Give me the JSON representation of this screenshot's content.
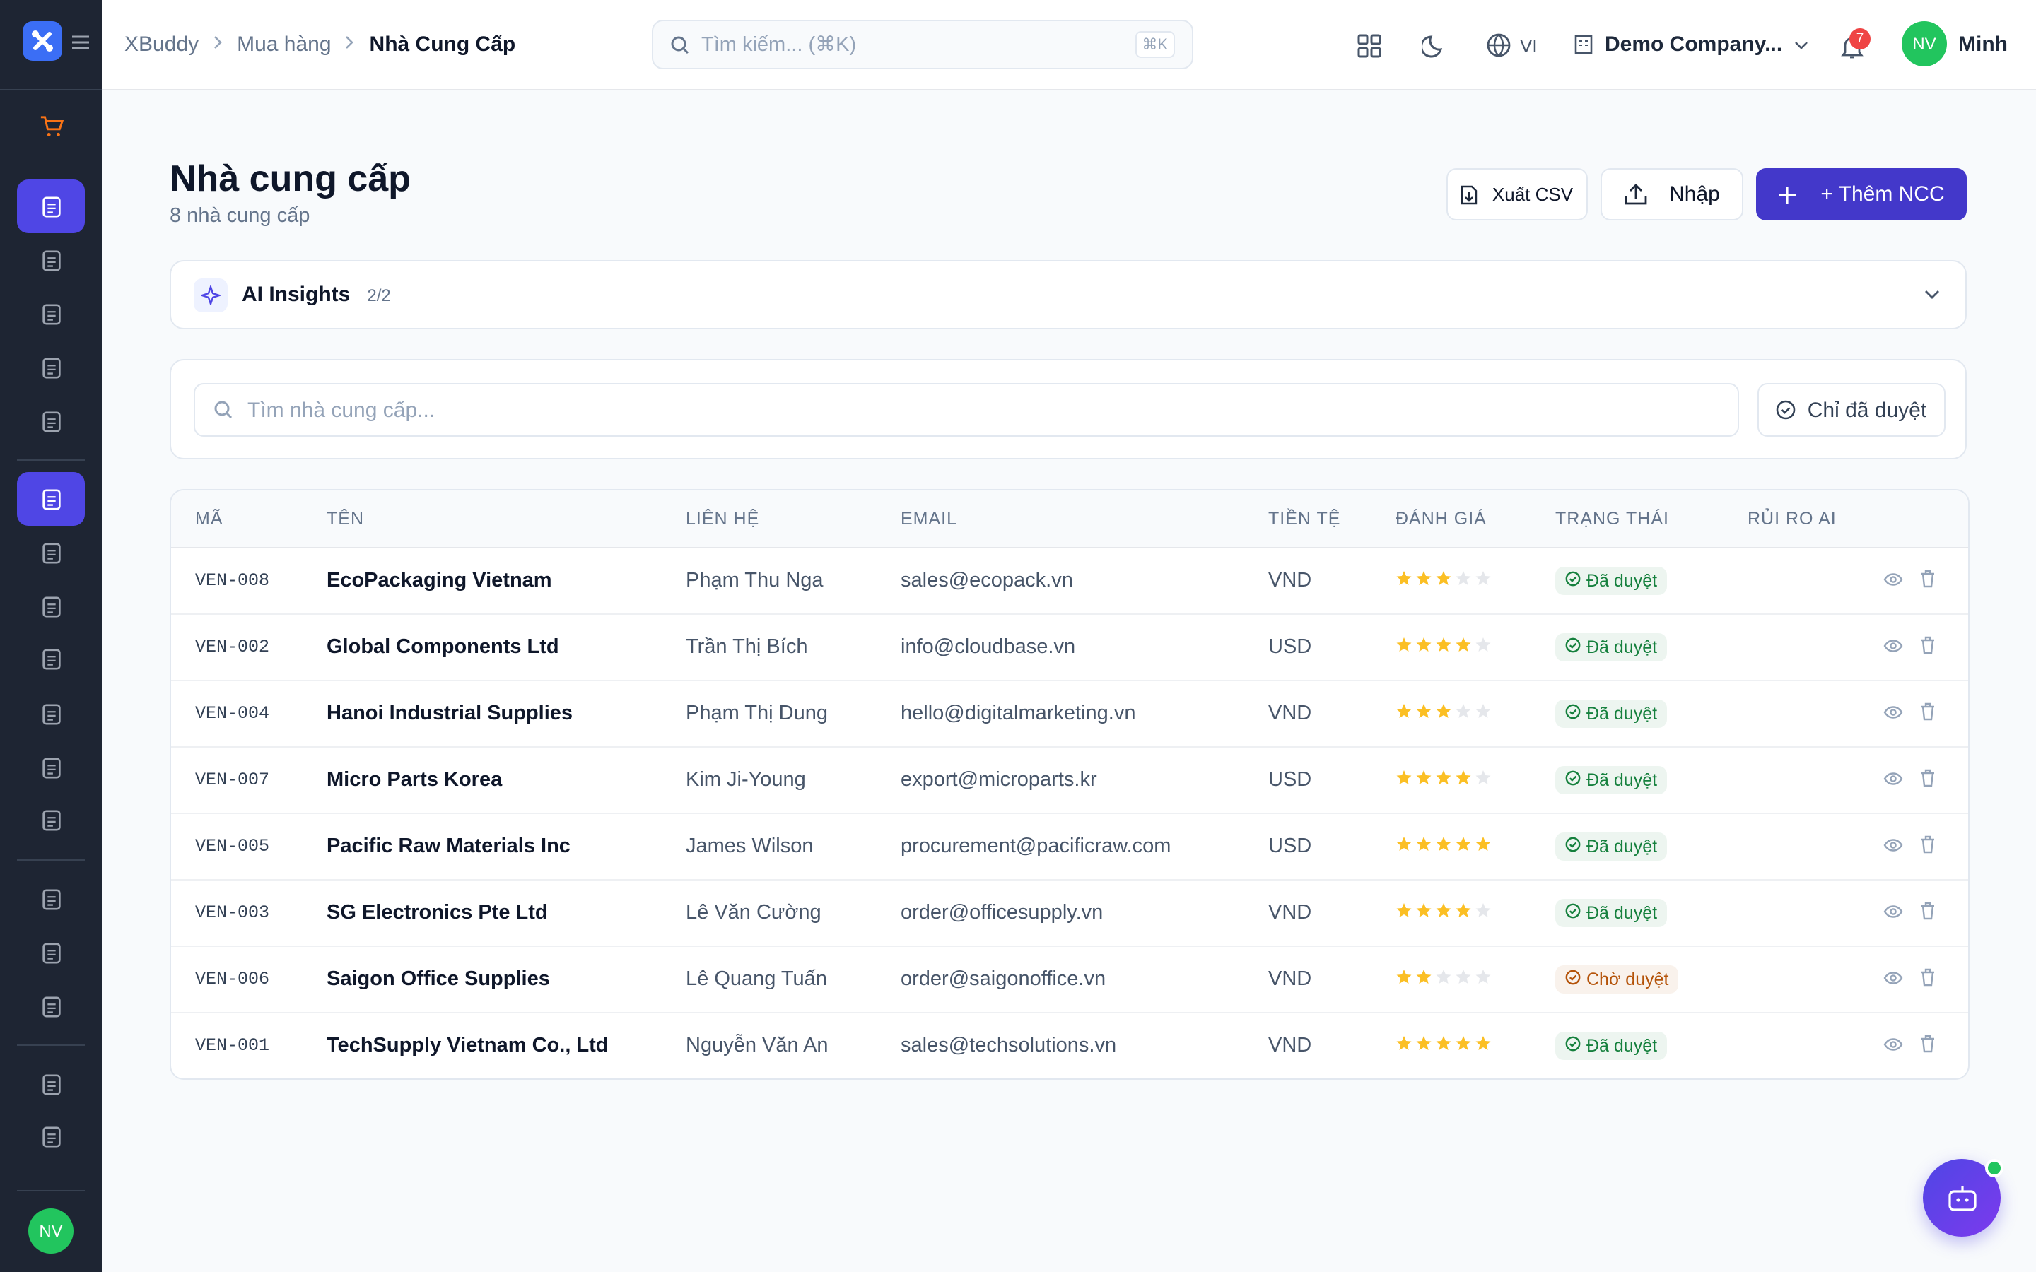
{
  "topbar": {
    "breadcrumb": [
      "XBuddy",
      "Mua hàng",
      "Nhà Cung Cấp"
    ],
    "search_placeholder": "Tìm kiếm... (⌘K)",
    "search_shortcut": "⌘K",
    "language": "VI",
    "company": "Demo Company...",
    "notifications": "7",
    "user_initials": "NV",
    "user_name": "Minh"
  },
  "sidebar": {
    "user_initials": "NV"
  },
  "page": {
    "title": "Nhà cung cấp",
    "subtitle": "8 nhà cung cấp",
    "export_button": "Xuất CSV",
    "import_button": "Nhập",
    "add_button": "+ Thêm NCC"
  },
  "ai_insights": {
    "title": "AI Insights",
    "count": "2/2"
  },
  "filter": {
    "search_placeholder": "Tìm nhà cung cấp...",
    "approved_only": "Chỉ đã duyệt"
  },
  "table": {
    "columns": [
      "MÃ",
      "TÊN",
      "LIÊN HỆ",
      "EMAIL",
      "TIỀN TỆ",
      "ĐÁNH GIÁ",
      "TRẠNG THÁI",
      "RỦI RO AI"
    ],
    "rows": [
      {
        "code": "VEN-008",
        "name": "EcoPackaging Vietnam",
        "contact": "Phạm Thu Nga",
        "email": "sales@ecopack.vn",
        "currency": "VND",
        "rating": 3,
        "status": "Đã duyệt",
        "status_color": "#15803d"
      },
      {
        "code": "VEN-002",
        "name": "Global Components Ltd",
        "contact": "Trần Thị Bích",
        "email": "info@cloudbase.vn",
        "currency": "USD",
        "rating": 4,
        "status": "Đã duyệt",
        "status_color": "#15803d"
      },
      {
        "code": "VEN-004",
        "name": "Hanoi Industrial Supplies",
        "contact": "Phạm Thị Dung",
        "email": "hello@digitalmarketing.vn",
        "currency": "VND",
        "rating": 3,
        "status": "Đã duyệt",
        "status_color": "#15803d"
      },
      {
        "code": "VEN-007",
        "name": "Micro Parts Korea",
        "contact": "Kim Ji-Young",
        "email": "export@microparts.kr",
        "currency": "USD",
        "rating": 4,
        "status": "Đã duyệt",
        "status_color": "#15803d"
      },
      {
        "code": "VEN-005",
        "name": "Pacific Raw Materials Inc",
        "contact": "James Wilson",
        "email": "procurement@pacificraw.com",
        "currency": "USD",
        "rating": 5,
        "status": "Đã duyệt",
        "status_color": "#15803d"
      },
      {
        "code": "VEN-003",
        "name": "SG Electronics Pte Ltd",
        "contact": "Lê Văn Cường",
        "email": "order@officesupply.vn",
        "currency": "VND",
        "rating": 4,
        "status": "Đã duyệt",
        "status_color": "#15803d"
      },
      {
        "code": "VEN-006",
        "name": "Saigon Office Supplies",
        "contact": "Lê Quang Tuấn",
        "email": "order@saigonoffice.vn",
        "currency": "VND",
        "rating": 2,
        "status": "Chờ duyệt",
        "status_color": "#b45309"
      },
      {
        "code": "VEN-001",
        "name": "TechSupply Vietnam Co., Ltd",
        "contact": "Nguyễn Văn An",
        "email": "sales@techsolutions.vn",
        "currency": "VND",
        "rating": 5,
        "status": "Đã duyệt",
        "status_color": "#15803d"
      }
    ]
  }
}
